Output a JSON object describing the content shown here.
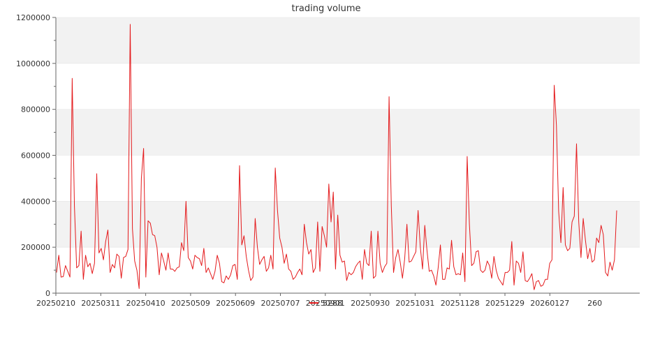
{
  "chart_data": {
    "type": "line",
    "title": "trading volume",
    "xlabel": "",
    "ylabel": "",
    "ylim": [
      0,
      1200000
    ],
    "grid": "horizontal bands",
    "legend_position": "bottom",
    "colors": {
      "series": "#e41a1c",
      "band": "#f2f2f2",
      "axis": "#666666",
      "text": "#333333"
    },
    "y_ticks": [
      "0",
      "200000",
      "400000",
      "600000",
      "800000",
      "1000000",
      "1200000"
    ],
    "x_tick_labels": [
      "20250210",
      "20250311",
      "20250410",
      "20250509",
      "20250609",
      "20250707",
      "20250901",
      "20250930",
      "20251031",
      "20251128",
      "20251229",
      "20260127",
      "260"
    ],
    "series": [
      {
        "name": "5288",
        "values": [
          90000,
          165000,
          70000,
          72000,
          120000,
          95000,
          70000,
          935000,
          380000,
          110000,
          120000,
          270000,
          60000,
          165000,
          115000,
          130000,
          85000,
          130000,
          520000,
          175000,
          195000,
          145000,
          225000,
          275000,
          90000,
          125000,
          110000,
          170000,
          160000,
          65000,
          155000,
          160000,
          190000,
          1170000,
          280000,
          140000,
          100000,
          20000,
          500000,
          630000,
          70000,
          315000,
          305000,
          255000,
          250000,
          200000,
          80000,
          175000,
          140000,
          100000,
          175000,
          105000,
          105000,
          95000,
          110000,
          115000,
          220000,
          185000,
          400000,
          155000,
          140000,
          105000,
          165000,
          155000,
          150000,
          120000,
          195000,
          90000,
          110000,
          85000,
          60000,
          95000,
          165000,
          130000,
          50000,
          45000,
          75000,
          60000,
          80000,
          120000,
          125000,
          60000,
          555000,
          210000,
          250000,
          160000,
          100000,
          55000,
          70000,
          325000,
          200000,
          125000,
          145000,
          160000,
          95000,
          110000,
          165000,
          105000,
          545000,
          360000,
          240000,
          200000,
          130000,
          170000,
          105000,
          95000,
          60000,
          70000,
          90000,
          105000,
          80000,
          300000,
          220000,
          170000,
          190000,
          90000,
          110000,
          310000,
          95000,
          290000,
          250000,
          200000,
          475000,
          310000,
          440000,
          105000,
          340000,
          165000,
          135000,
          140000,
          55000,
          90000,
          80000,
          90000,
          115000,
          130000,
          140000,
          60000,
          190000,
          130000,
          120000,
          270000,
          65000,
          75000,
          270000,
          130000,
          90000,
          115000,
          130000,
          855000,
          380000,
          90000,
          155000,
          190000,
          135000,
          65000,
          150000,
          300000,
          135000,
          140000,
          160000,
          180000,
          360000,
          200000,
          105000,
          295000,
          185000,
          95000,
          100000,
          75000,
          35000,
          110000,
          210000,
          60000,
          60000,
          110000,
          105000,
          230000,
          115000,
          80000,
          85000,
          80000,
          175000,
          50000,
          595000,
          300000,
          120000,
          130000,
          180000,
          185000,
          100000,
          90000,
          100000,
          140000,
          120000,
          65000,
          160000,
          100000,
          65000,
          50000,
          35000,
          90000,
          90000,
          100000,
          225000,
          35000,
          140000,
          130000,
          90000,
          180000,
          55000,
          50000,
          65000,
          85000,
          15000,
          50000,
          55000,
          30000,
          35000,
          60000,
          60000,
          130000,
          145000,
          905000,
          730000,
          355000,
          220000,
          460000,
          210000,
          185000,
          195000,
          310000,
          335000,
          650000,
          310000,
          155000,
          325000,
          230000,
          150000,
          195000,
          135000,
          145000,
          240000,
          220000,
          295000,
          255000,
          90000,
          75000,
          135000,
          100000,
          145000,
          360000
        ]
      }
    ]
  }
}
